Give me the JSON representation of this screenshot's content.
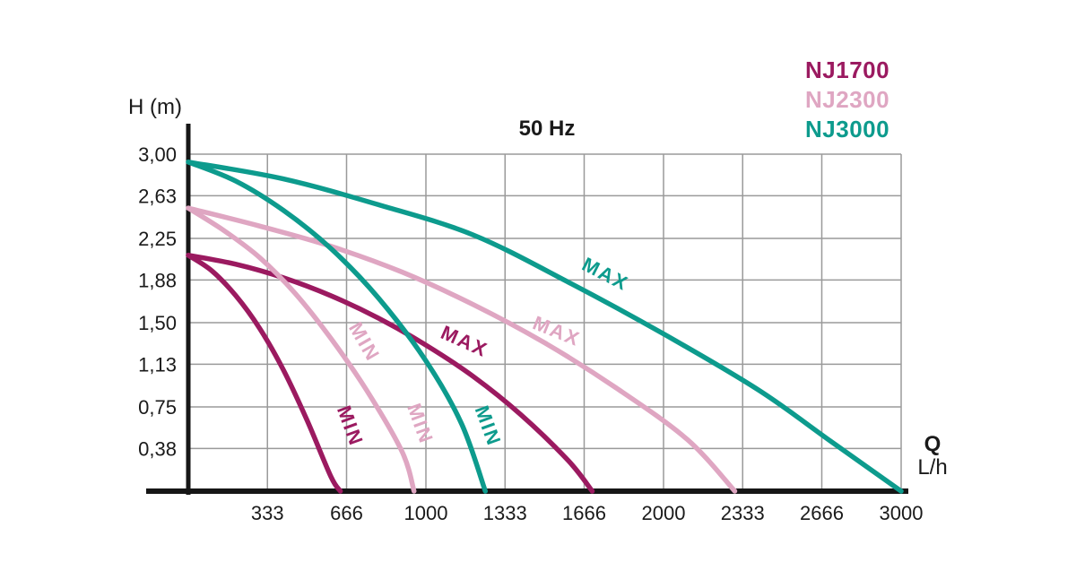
{
  "title": "50 Hz",
  "y_axis_label": "H (m)",
  "x_unit_label_line1": "Q",
  "x_unit_label_line2": "L/h",
  "legend": [
    {
      "label": "NJ1700",
      "color": "#9b1a60"
    },
    {
      "label": "NJ2300",
      "color": "#dfa6c2"
    },
    {
      "label": "NJ3000",
      "color": "#0d9b8d"
    }
  ],
  "chart_data": {
    "type": "line",
    "title": "50 Hz",
    "xlabel": "Q (L/h)",
    "ylabel": "H (m)",
    "xlim": [
      0,
      3000
    ],
    "ylim": [
      0,
      3.0
    ],
    "grid": true,
    "grid_color": "#9a9a9a",
    "axis_color": "#161616",
    "x_ticks": [
      333,
      666,
      1000,
      1333,
      1666,
      2000,
      2333,
      2666,
      3000
    ],
    "x_tick_labels": [
      "333",
      "666",
      "1000",
      "1333",
      "1666",
      "2000",
      "2333",
      "2666",
      "3000"
    ],
    "y_ticks": [
      3.0,
      2.63,
      2.25,
      1.88,
      1.5,
      1.13,
      0.75,
      0.38
    ],
    "y_tick_labels": [
      "3,00",
      "2,63",
      "2,25",
      "1,88",
      "1,50",
      "1,13",
      "0,75",
      "0,38"
    ],
    "legend_position": "top-right",
    "series": [
      {
        "name": "NJ1700 MAX",
        "color": "#9b1a60",
        "points": [
          [
            0,
            2.1
          ],
          [
            200,
            2.02
          ],
          [
            400,
            1.9
          ],
          [
            600,
            1.74
          ],
          [
            800,
            1.54
          ],
          [
            1000,
            1.3
          ],
          [
            1200,
            1.02
          ],
          [
            1400,
            0.68
          ],
          [
            1600,
            0.27
          ],
          [
            1700,
            0.0
          ]
        ]
      },
      {
        "name": "NJ1700 MIN",
        "color": "#9b1a60",
        "points": [
          [
            0,
            2.1
          ],
          [
            100,
            1.96
          ],
          [
            200,
            1.74
          ],
          [
            300,
            1.45
          ],
          [
            400,
            1.08
          ],
          [
            500,
            0.63
          ],
          [
            600,
            0.13
          ],
          [
            640,
            0.0
          ]
        ]
      },
      {
        "name": "NJ2300 MAX",
        "color": "#dfa6c2",
        "points": [
          [
            0,
            2.52
          ],
          [
            300,
            2.36
          ],
          [
            600,
            2.18
          ],
          [
            900,
            1.95
          ],
          [
            1200,
            1.66
          ],
          [
            1500,
            1.32
          ],
          [
            1800,
            0.92
          ],
          [
            2100,
            0.46
          ],
          [
            2300,
            0.0
          ]
        ]
      },
      {
        "name": "NJ2300 MIN",
        "color": "#dfa6c2",
        "points": [
          [
            0,
            2.52
          ],
          [
            150,
            2.32
          ],
          [
            300,
            2.08
          ],
          [
            450,
            1.76
          ],
          [
            600,
            1.36
          ],
          [
            750,
            0.9
          ],
          [
            900,
            0.35
          ],
          [
            950,
            0.0
          ]
        ]
      },
      {
        "name": "NJ3000 MAX",
        "color": "#0d9b8d",
        "points": [
          [
            0,
            2.93
          ],
          [
            400,
            2.78
          ],
          [
            800,
            2.55
          ],
          [
            1200,
            2.28
          ],
          [
            1600,
            1.86
          ],
          [
            2000,
            1.4
          ],
          [
            2400,
            0.9
          ],
          [
            2700,
            0.45
          ],
          [
            3000,
            0.0
          ]
        ]
      },
      {
        "name": "NJ3000 MIN",
        "color": "#0d9b8d",
        "points": [
          [
            0,
            2.93
          ],
          [
            200,
            2.76
          ],
          [
            400,
            2.5
          ],
          [
            600,
            2.16
          ],
          [
            800,
            1.72
          ],
          [
            1000,
            1.16
          ],
          [
            1150,
            0.6
          ],
          [
            1250,
            0.0
          ]
        ]
      }
    ],
    "curve_labels": [
      {
        "text": "MAX",
        "series": "NJ1700 MAX",
        "q": 1151,
        "h": 1.28,
        "rotate": 24,
        "color": "#9b1a60"
      },
      {
        "text": "MAX",
        "series": "NJ2300 MAX",
        "q": 1540,
        "h": 1.37,
        "rotate": 22,
        "color": "#dfa6c2"
      },
      {
        "text": "MAX",
        "series": "NJ3000 MAX",
        "q": 1743,
        "h": 1.88,
        "rotate": 27,
        "color": "#0d9b8d"
      },
      {
        "text": "MIN",
        "series": "NJ1700 MIN",
        "q": 655,
        "h": 0.56,
        "rotate": 70,
        "color": "#9b1a60"
      },
      {
        "text": "MIN",
        "series": "NJ2300 MIN",
        "q": 717,
        "h": 1.3,
        "rotate": 60,
        "color": "#dfa6c2"
      },
      {
        "text": "MIN",
        "series": "NJ2300 MIN",
        "q": 950,
        "h": 0.58,
        "rotate": 70,
        "color": "#dfa6c2"
      },
      {
        "text": "MIN",
        "series": "NJ3000 MIN",
        "q": 1235,
        "h": 0.56,
        "rotate": 70,
        "color": "#0d9b8d"
      }
    ]
  }
}
